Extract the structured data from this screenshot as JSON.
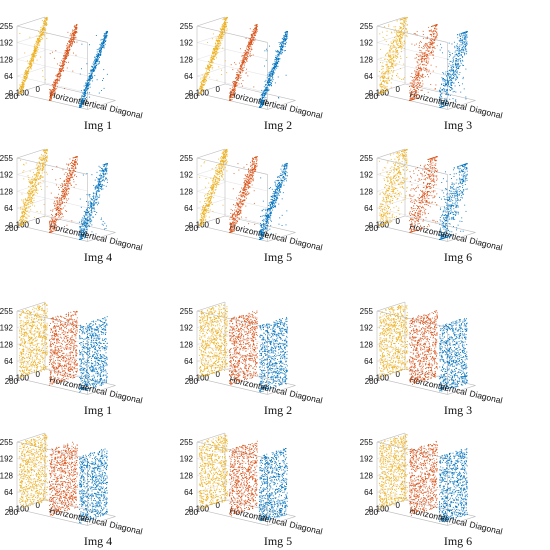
{
  "chart_data": {
    "type": "scatter",
    "groups": [
      {
        "state": "plain",
        "panels": [
          {
            "caption": "Img 1",
            "spread": 0.05
          },
          {
            "caption": "Img 2",
            "spread": 0.06
          },
          {
            "caption": "Img 3",
            "spread": 0.16
          },
          {
            "caption": "Img 4",
            "spread": 0.11
          },
          {
            "caption": "Img 5",
            "spread": 0.09
          },
          {
            "caption": "Img 6",
            "spread": 0.22
          }
        ]
      },
      {
        "state": "cipher",
        "panels": [
          {
            "caption": "Img 1"
          },
          {
            "caption": "Img 2"
          },
          {
            "caption": "Img 3"
          },
          {
            "caption": "Img 4"
          },
          {
            "caption": "Img 5"
          },
          {
            "caption": "Img 6"
          }
        ]
      }
    ],
    "axes": {
      "x_labels": [
        "Horizontal",
        "Vertical",
        "Diagonal"
      ],
      "y_ticks": [
        "200",
        "100",
        "0"
      ],
      "z_ticks": [
        "0",
        "64",
        "128",
        "192",
        "255"
      ],
      "z_range": [
        0,
        255
      ],
      "y_range": [
        0,
        255
      ]
    },
    "series": [
      {
        "name": "Horizontal",
        "color": "#EDB120"
      },
      {
        "name": "Vertical",
        "color": "#D95319"
      },
      {
        "name": "Diagonal",
        "color": "#0072BD"
      }
    ]
  }
}
